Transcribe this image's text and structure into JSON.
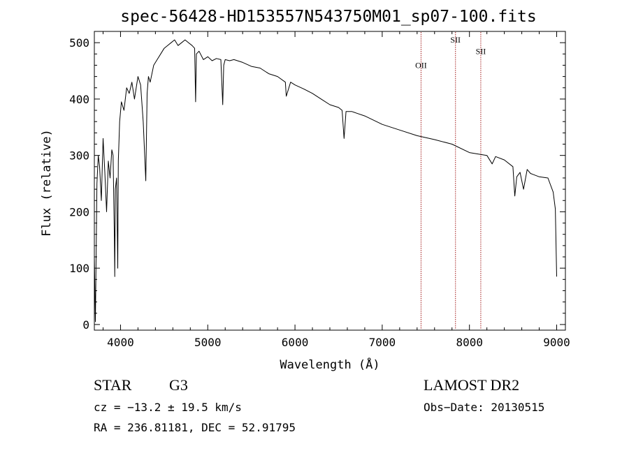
{
  "chart_data": {
    "type": "line",
    "title": "spec-56428-HD153557N543750M01_sp07-100.fits",
    "xlabel": "Wavelength (Å)",
    "ylabel": "Flux (relative)",
    "xlim": [
      3700,
      9100
    ],
    "ylim": [
      -10,
      520
    ],
    "xticks": [
      4000,
      5000,
      6000,
      7000,
      8000,
      9000
    ],
    "xtick_labels": [
      "4000",
      "5000",
      "6000",
      "7000",
      "8000",
      "9000"
    ],
    "yticks": [
      0,
      100,
      200,
      300,
      400,
      500
    ],
    "ytick_labels": [
      "0",
      "100",
      "200",
      "300",
      "400",
      "500"
    ],
    "grid": false,
    "line_color": "#000000",
    "marker_line_color": "#a31a1a",
    "series": [
      {
        "x": [
          3700,
          3712,
          3730,
          3745,
          3760,
          3780,
          3800,
          3820,
          3840,
          3860,
          3880,
          3900,
          3915,
          3930,
          3934,
          3940,
          3955,
          3968,
          3975,
          3990,
          4010,
          4040,
          4070,
          4100,
          4130,
          4160,
          4200,
          4230,
          4260,
          4290,
          4305,
          4320,
          4340,
          4380,
          4420,
          4460,
          4500,
          4540,
          4580,
          4620,
          4660,
          4700,
          4740,
          4780,
          4820,
          4850,
          4861,
          4870,
          4900,
          4950,
          5000,
          5050,
          5100,
          5150,
          5172,
          5183,
          5200,
          5250,
          5300,
          5400,
          5500,
          5600,
          5700,
          5800,
          5890,
          5900,
          5950,
          6000,
          6100,
          6200,
          6300,
          6400,
          6500,
          6540,
          6563,
          6585,
          6650,
          6800,
          7000,
          7200,
          7400,
          7600,
          7800,
          8000,
          8200,
          8260,
          8300,
          8400,
          8498,
          8520,
          8542,
          8580,
          8620,
          8662,
          8700,
          8800,
          8900,
          8960,
          8985,
          9000
        ],
        "y": [
          120,
          5,
          250,
          300,
          280,
          220,
          330,
          270,
          200,
          290,
          260,
          310,
          300,
          150,
          85,
          240,
          260,
          100,
          290,
          360,
          395,
          380,
          420,
          410,
          430,
          400,
          440,
          425,
          360,
          255,
          410,
          440,
          430,
          460,
          470,
          480,
          490,
          495,
          500,
          505,
          495,
          500,
          505,
          500,
          495,
          490,
          395,
          480,
          485,
          470,
          475,
          468,
          472,
          470,
          390,
          460,
          470,
          468,
          470,
          465,
          458,
          455,
          445,
          440,
          430,
          405,
          430,
          425,
          418,
          410,
          400,
          390,
          385,
          380,
          330,
          378,
          378,
          370,
          355,
          345,
          335,
          328,
          320,
          305,
          300,
          285,
          298,
          292,
          280,
          228,
          262,
          270,
          240,
          275,
          268,
          262,
          260,
          235,
          205,
          85
        ]
      }
    ],
    "annotations": [
      {
        "text": "OII",
        "x": 7445,
        "y": 455
      },
      {
        "text": "SII",
        "x": 7840,
        "y": 500
      },
      {
        "text": "SII",
        "x": 8130,
        "y": 480
      }
    ],
    "marker_lines": [
      7445,
      7840,
      8130
    ]
  },
  "info": {
    "object_class": "STAR",
    "subclass": "G3",
    "survey": "LAMOST DR2",
    "cz": "cz = −13.2 ± 19.5 km/s",
    "obs_date": "Obs−Date: 20130515",
    "coords": "RA = 236.81181, DEC =  52.91795"
  }
}
